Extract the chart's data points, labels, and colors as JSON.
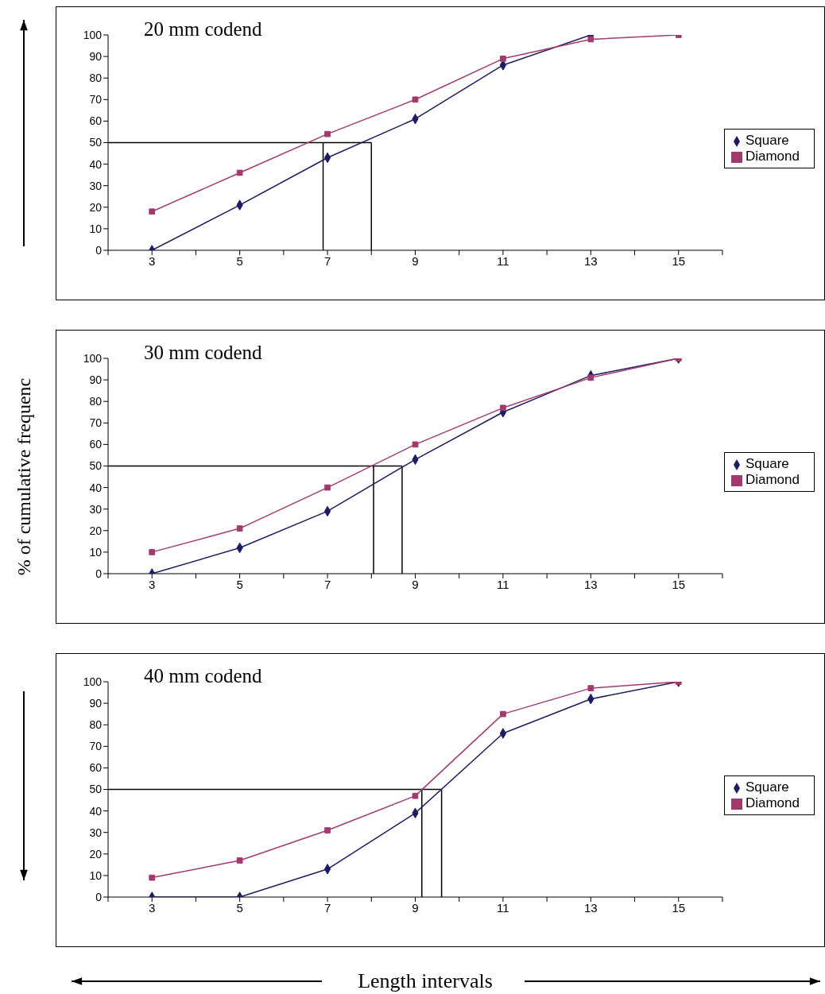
{
  "chart_data": [
    {
      "type": "line",
      "title": "20 mm codend",
      "x": [
        3,
        5,
        7,
        9,
        11,
        13,
        15
      ],
      "xlim": [
        2,
        16
      ],
      "xticks": [
        {
          "value": 2,
          "label": null
        },
        3,
        {
          "value": 4,
          "label": null
        },
        5,
        {
          "value": 6,
          "label": null
        },
        7,
        {
          "value": 8,
          "label": null
        },
        9,
        {
          "value": 10,
          "label": null
        },
        11,
        {
          "value": 12,
          "label": null
        },
        13,
        {
          "value": 14,
          "label": null
        },
        15,
        {
          "value": 16,
          "label": null
        }
      ],
      "ylim": [
        0,
        100
      ],
      "yticks": [
        0,
        10,
        20,
        30,
        40,
        50,
        60,
        70,
        80,
        90,
        100
      ],
      "grid": false,
      "legend": "right",
      "series": [
        {
          "name": "Square",
          "color": "#1c1c64",
          "marker": "diamond",
          "values": [
            0,
            21,
            43,
            61,
            86,
            100,
            null
          ]
        },
        {
          "name": "Diamond",
          "color": "#a33a6e",
          "marker": "square",
          "values": [
            18,
            36,
            54,
            70,
            89,
            98,
            100
          ]
        }
      ],
      "ref_lines": [
        {
          "axis": "y",
          "value": 50,
          "label": null,
          "color": "#000000"
        },
        {
          "axis": "x",
          "value": 6.9,
          "label": null,
          "color": "#000000"
        },
        {
          "axis": "x",
          "value": 8.0,
          "label": null,
          "color": "#000000"
        }
      ]
    },
    {
      "type": "line",
      "title": "30 mm codend",
      "ylabel": "% of cumulative frequenc",
      "x": [
        3,
        5,
        7,
        9,
        11,
        13,
        15
      ],
      "xlim": [
        2,
        16
      ],
      "xticks": [
        {
          "value": 2,
          "label": null
        },
        3,
        {
          "value": 4,
          "label": null
        },
        5,
        {
          "value": 6,
          "label": null
        },
        7,
        {
          "value": 8,
          "label": null
        },
        9,
        {
          "value": 10,
          "label": null
        },
        11,
        {
          "value": 12,
          "label": null
        },
        13,
        {
          "value": 14,
          "label": null
        },
        15,
        {
          "value": 16,
          "label": null
        }
      ],
      "ylim": [
        0,
        100
      ],
      "yticks": [
        0,
        10,
        20,
        30,
        40,
        50,
        60,
        70,
        80,
        90,
        100
      ],
      "grid": false,
      "legend": "right",
      "series": [
        {
          "name": "Square",
          "color": "#1c1c64",
          "marker": "diamond",
          "values": [
            0,
            12,
            29,
            53,
            75,
            92,
            100
          ]
        },
        {
          "name": "Diamond",
          "color": "#a33a6e",
          "marker": "square",
          "values": [
            10,
            21,
            40,
            60,
            77,
            91,
            100
          ]
        }
      ],
      "ref_lines": [
        {
          "axis": "y",
          "value": 50,
          "label": null,
          "color": "#000000"
        },
        {
          "axis": "x",
          "value": 8.05,
          "label": null,
          "color": "#000000"
        },
        {
          "axis": "x",
          "value": 8.7,
          "label": null,
          "color": "#000000"
        }
      ]
    },
    {
      "type": "line",
      "title": "40 mm codend",
      "xlabel": "Length intervals",
      "x": [
        3,
        5,
        7,
        9,
        11,
        13,
        15
      ],
      "xlim": [
        2,
        16
      ],
      "xticks": [
        {
          "value": 2,
          "label": null
        },
        3,
        {
          "value": 4,
          "label": null
        },
        5,
        {
          "value": 6,
          "label": null
        },
        7,
        {
          "value": 8,
          "label": null
        },
        9,
        {
          "value": 10,
          "label": null
        },
        11,
        {
          "value": 12,
          "label": null
        },
        13,
        {
          "value": 14,
          "label": null
        },
        15,
        {
          "value": 16,
          "label": null
        }
      ],
      "ylim": [
        0,
        100
      ],
      "yticks": [
        0,
        10,
        20,
        30,
        40,
        50,
        60,
        70,
        80,
        90,
        100
      ],
      "grid": false,
      "legend": "right",
      "series": [
        {
          "name": "Square",
          "color": "#1c1c64",
          "marker": "diamond",
          "values": [
            0,
            0,
            13,
            39,
            76,
            92,
            100
          ]
        },
        {
          "name": "Diamond",
          "color": "#a33a6e",
          "marker": "square",
          "values": [
            9,
            17,
            31,
            47,
            85,
            97,
            100
          ]
        }
      ],
      "ref_lines": [
        {
          "axis": "y",
          "value": 50,
          "label": null,
          "color": "#000000"
        },
        {
          "axis": "x",
          "value": 9.15,
          "label": null,
          "color": "#000000"
        },
        {
          "axis": "x",
          "value": 9.6,
          "label": null,
          "color": "#000000"
        }
      ]
    }
  ]
}
